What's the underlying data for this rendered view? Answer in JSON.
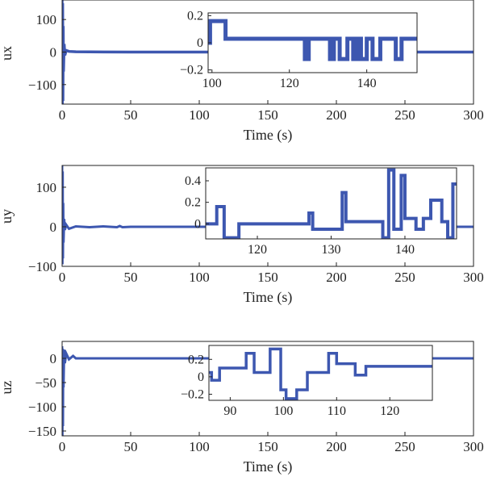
{
  "line_color": "#3d57b0",
  "axis_color": "#222222",
  "chart_data": [
    {
      "type": "line",
      "title": "",
      "xlabel": "Time (s)",
      "ylabel": "ux",
      "xlim": [
        0,
        300
      ],
      "ylim": [
        -160,
        160
      ],
      "xticks": [
        0,
        50,
        100,
        150,
        200,
        250,
        300
      ],
      "xtick_labels": [
        "0",
        "50",
        "100",
        "150",
        "200",
        "250",
        "300"
      ],
      "yticks": [
        100,
        0,
        -100
      ],
      "ytick_labels": [
        "100",
        "0",
        "−100"
      ],
      "grid": false,
      "series": [
        {
          "x": [
            0,
            0.2,
            0.4,
            0.6,
            0.8,
            1,
            1.5,
            2,
            3,
            5,
            10,
            20,
            50,
            100,
            150,
            200,
            250,
            300
          ],
          "y": [
            160,
            -160,
            150,
            -150,
            80,
            -60,
            25,
            -10,
            5,
            2,
            1,
            0.5,
            0,
            0,
            0,
            0,
            0,
            0
          ]
        }
      ],
      "inset": {
        "xlim": [
          99,
          153
        ],
        "ylim": [
          -0.22,
          0.22
        ],
        "xticks": [
          100,
          120,
          140
        ],
        "xtick_labels": [
          "100",
          "120",
          "140"
        ],
        "yticks": [
          0.2,
          0,
          -0.2
        ],
        "ytick_labels": [
          "0.2",
          "0",
          "−0.2"
        ],
        "series": [
          {
            "x": [
              99,
              99.5,
              99.5,
              103.5,
              103.5,
              124,
              124,
              125,
              125,
              130.5,
              130.5,
              131.5,
              131.5,
              133,
              133,
              135,
              135,
              136.5,
              136.5,
              137.5,
              137.5,
              138.5,
              138.5,
              140,
              140,
              141.5,
              141.5,
              143.5,
              143.5,
              147.5,
              147.5,
              149,
              149,
              153
            ],
            "y": [
              0,
              0,
              0.16,
              0.16,
              0.03,
              0.03,
              -0.12,
              -0.12,
              0.03,
              0.03,
              -0.12,
              -0.12,
              0.03,
              0.03,
              -0.12,
              -0.12,
              0.03,
              0.03,
              -0.12,
              -0.12,
              0.03,
              0.03,
              -0.12,
              -0.12,
              0.03,
              0.03,
              -0.12,
              -0.12,
              0.03,
              0.03,
              -0.12,
              -0.12,
              0.03,
              0.03
            ]
          }
        ]
      }
    },
    {
      "type": "line",
      "title": "",
      "xlabel": "Time (s)",
      "ylabel": "uy",
      "xlim": [
        0,
        300
      ],
      "ylim": [
        -100,
        155
      ],
      "xticks": [
        0,
        50,
        100,
        150,
        200,
        250,
        300
      ],
      "xtick_labels": [
        "0",
        "50",
        "100",
        "150",
        "200",
        "250",
        "300"
      ],
      "yticks": [
        100,
        0,
        -100
      ],
      "ytick_labels": [
        "100",
        "0",
        "−100"
      ],
      "grid": false,
      "series": [
        {
          "x": [
            0,
            0.2,
            0.4,
            0.6,
            0.8,
            1,
            1.5,
            2,
            3,
            5,
            10,
            20,
            30,
            40,
            42,
            44,
            50,
            100,
            150,
            200,
            250,
            300
          ],
          "y": [
            155,
            -95,
            140,
            -80,
            60,
            -40,
            20,
            -8,
            5,
            -5,
            1,
            -1,
            1,
            -1,
            2,
            -1,
            0,
            0,
            0,
            0,
            0,
            0
          ]
        }
      ],
      "inset": {
        "xlim": [
          113,
          147
        ],
        "ylim": [
          -0.14,
          0.52
        ],
        "xticks": [
          120,
          130,
          140
        ],
        "xtick_labels": [
          "120",
          "130",
          "140"
        ],
        "yticks": [
          0.4,
          0.2,
          0
        ],
        "ytick_labels": [
          "0.4",
          "0.2",
          "0"
        ],
        "series": [
          {
            "x": [
              113,
              114.5,
              114.5,
              115.5,
              115.5,
              116.5,
              116.5,
              117.5,
              117.5,
              127,
              127,
              127.5,
              127.5,
              131.5,
              131.5,
              132,
              132,
              137,
              137,
              137.8,
              137.8,
              138.5,
              138.5,
              139.5,
              139.5,
              140,
              140,
              141.5,
              141.5,
              142.5,
              142.5,
              143.5,
              143.5,
              145,
              145,
              145.8,
              145.8,
              146.5,
              146.5,
              147
            ],
            "y": [
              0,
              0,
              0.16,
              0.16,
              -0.13,
              -0.13,
              -0.13,
              -0.13,
              0,
              0,
              0.1,
              0.1,
              -0.05,
              -0.05,
              0.29,
              0.29,
              0.02,
              0.02,
              -0.13,
              -0.13,
              0.5,
              0.5,
              -0.05,
              -0.05,
              0.45,
              0.45,
              0.05,
              0.05,
              -0.05,
              -0.05,
              0.05,
              0.05,
              0.22,
              0.22,
              0.02,
              0.02,
              -0.13,
              -0.13,
              0.37,
              0.37
            ]
          }
        ]
      }
    },
    {
      "type": "line",
      "title": "",
      "xlabel": "Time (s)",
      "ylabel": "uz",
      "xlim": [
        0,
        300
      ],
      "ylim": [
        -160,
        35
      ],
      "xticks": [
        0,
        50,
        100,
        150,
        200,
        250,
        300
      ],
      "xtick_labels": [
        "0",
        "50",
        "100",
        "150",
        "200",
        "250",
        "300"
      ],
      "yticks": [
        0,
        -50,
        -100,
        -150
      ],
      "ytick_labels": [
        "0",
        "−50",
        "−100",
        "−150"
      ],
      "grid": false,
      "series": [
        {
          "x": [
            0,
            0.2,
            0.4,
            0.6,
            0.8,
            1,
            1.5,
            2,
            3,
            5,
            8,
            10,
            20,
            50,
            100,
            150,
            200,
            250,
            300
          ],
          "y": [
            25,
            -160,
            20,
            -140,
            15,
            -60,
            18,
            -10,
            10,
            -2,
            5,
            0,
            0,
            0,
            0,
            0,
            0,
            0,
            0
          ]
        }
      ],
      "inset": {
        "xlim": [
          86,
          128
        ],
        "ylim": [
          -0.27,
          0.36
        ],
        "xticks": [
          90,
          100,
          110,
          120
        ],
        "xtick_labels": [
          "90",
          "100",
          "110",
          "120"
        ],
        "yticks": [
          0.2,
          0,
          -0.2
        ],
        "ytick_labels": [
          "0.2",
          "0",
          "−0.2"
        ],
        "series": [
          {
            "x": [
              86,
              86.5,
              86.5,
              88,
              88,
              93,
              93,
              94.5,
              94.5,
              97.5,
              97.5,
              99.5,
              99.5,
              100.5,
              100.5,
              102.5,
              102.5,
              104.5,
              104.5,
              108.5,
              108.5,
              110,
              110,
              113.5,
              113.5,
              115.5,
              115.5,
              128
            ],
            "y": [
              0.05,
              0.05,
              -0.04,
              -0.04,
              0.1,
              0.1,
              0.27,
              0.27,
              0.05,
              0.05,
              0.32,
              0.32,
              -0.15,
              -0.15,
              -0.25,
              -0.25,
              -0.15,
              -0.15,
              0.05,
              0.05,
              0.27,
              0.27,
              0.15,
              0.15,
              0.02,
              0.02,
              0.12,
              0.12
            ]
          }
        ]
      }
    }
  ]
}
